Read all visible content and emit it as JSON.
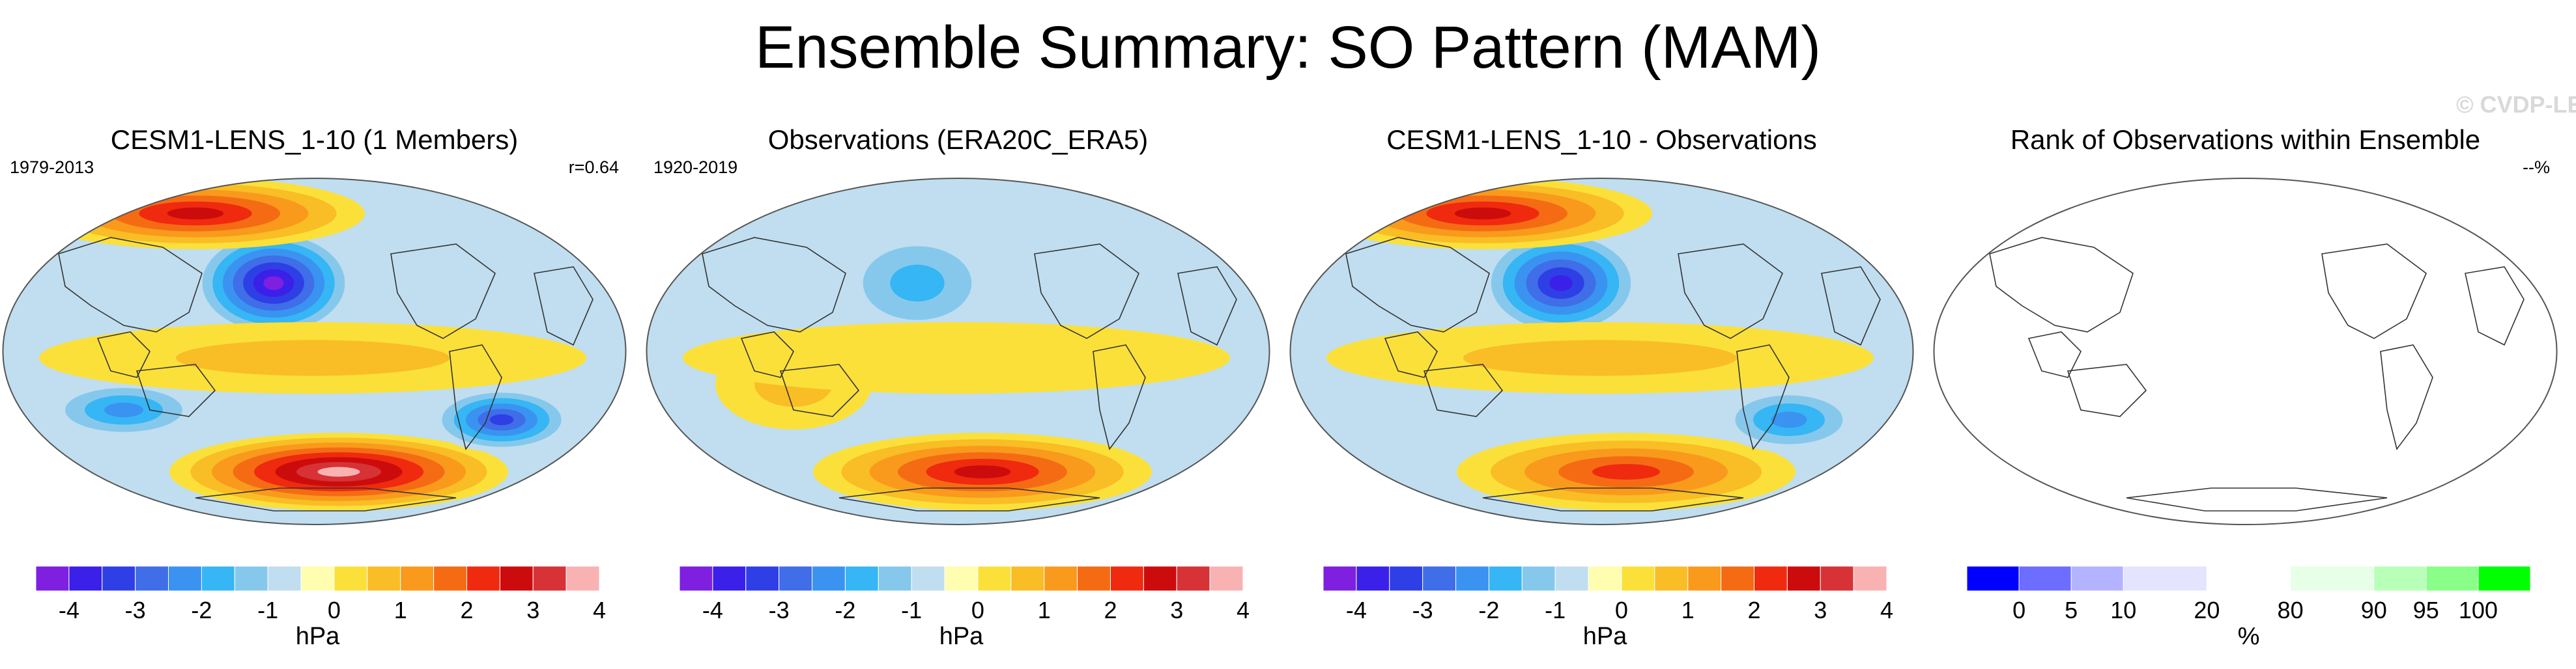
{
  "title": "Ensemble Summary: SO Pattern (MAM)",
  "watermark": "© CVDP-LE",
  "colors": {
    "diverging": [
      "#7f1fe0",
      "#3a20e8",
      "#2e3fe6",
      "#3f6ee8",
      "#3a93f0",
      "#36b6f4",
      "#86c8ec",
      "#c0def0",
      "#fffdb0",
      "#fbe03a",
      "#f9bd26",
      "#f99a1c",
      "#f56b14",
      "#ef2a0f",
      "#cc0c0c",
      "#d73236",
      "#f9b2b2"
    ],
    "rank": [
      "#0000ff",
      "#6d6dff",
      "#b3b3ff",
      "#e4e4ff",
      "#ffffff",
      "#e6ffe6",
      "#b8ffb8",
      "#89ff89",
      "#00ff00"
    ],
    "land_outline": "#333333",
    "map_border": "#555555"
  },
  "chart_data": [
    {
      "type": "heatmap",
      "title": "CESM1-LENS_1-10 (1 Members)",
      "left_label": "1979-2013",
      "right_label": "r=0.64",
      "colorbar": {
        "ticks": [
          "-4",
          "-3",
          "-2",
          "-1",
          "0",
          "1",
          "2",
          "3",
          "4"
        ],
        "unit": "hPa",
        "levels": 17
      },
      "features": [
        {
          "name": "north-pacific-low",
          "value": -4
        },
        {
          "name": "arctic-high",
          "value": 3
        },
        {
          "name": "southern-ocean-high",
          "value": 4
        },
        {
          "name": "indian-ocean-low",
          "value": -2
        },
        {
          "name": "south-pacific-low",
          "value": -3
        },
        {
          "name": "tropical-band",
          "value": 1
        }
      ]
    },
    {
      "type": "heatmap",
      "title": "Observations (ERA20C_ERA5)",
      "left_label": "1920-2019",
      "right_label": "",
      "colorbar": {
        "ticks": [
          "-4",
          "-3",
          "-2",
          "-1",
          "0",
          "1",
          "2",
          "3",
          "4"
        ],
        "unit": "hPa",
        "levels": 17
      },
      "features": [
        {
          "name": "north-pacific-low",
          "value": -1.5
        },
        {
          "name": "australia-high",
          "value": 1
        },
        {
          "name": "southern-ocean-high",
          "value": 3
        },
        {
          "name": "tropical-band",
          "value": 0.5
        }
      ]
    },
    {
      "type": "heatmap",
      "title": "CESM1-LENS_1-10 - Observations",
      "left_label": "",
      "right_label": "",
      "colorbar": {
        "ticks": [
          "-4",
          "-3",
          "-2",
          "-1",
          "0",
          "1",
          "2",
          "3",
          "4"
        ],
        "unit": "hPa",
        "levels": 17
      },
      "features": [
        {
          "name": "north-pacific-low",
          "value": -3.5
        },
        {
          "name": "arctic-high",
          "value": 3
        },
        {
          "name": "southern-ocean-high",
          "value": 2.5
        },
        {
          "name": "south-pacific-low",
          "value": -2
        },
        {
          "name": "tropical-band",
          "value": 1
        }
      ]
    },
    {
      "type": "heatmap",
      "title": "Rank of Observations within Ensemble",
      "left_label": "",
      "right_label": "--%",
      "colorbar": {
        "ticks": [
          "0",
          "5",
          "10",
          "20",
          "80",
          "90",
          "95",
          "100"
        ],
        "unit": "%",
        "levels": 9
      },
      "features": []
    }
  ]
}
